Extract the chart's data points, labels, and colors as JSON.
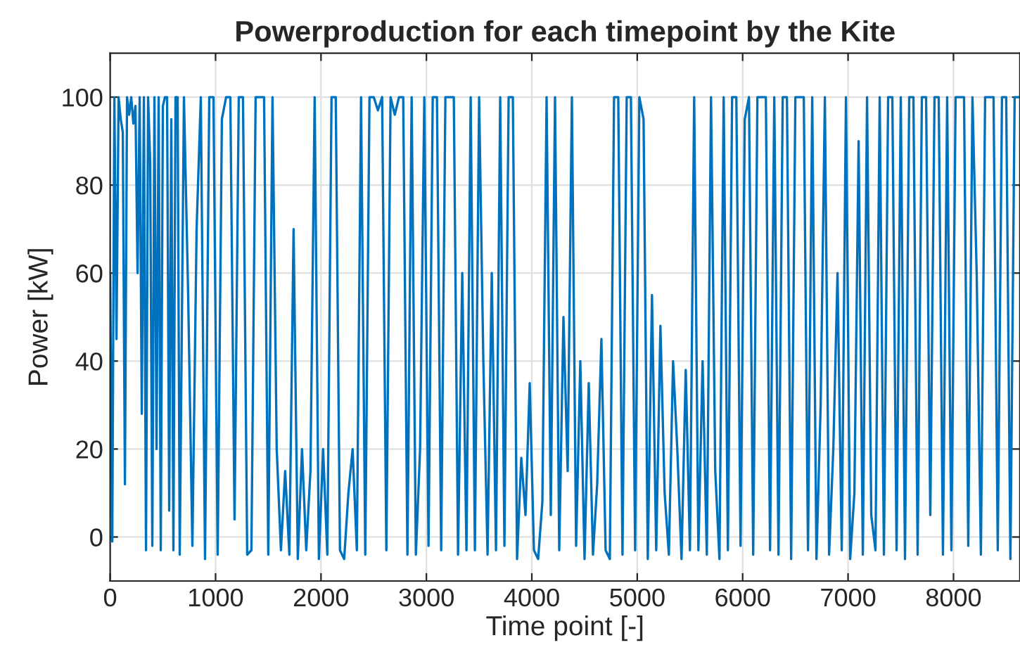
{
  "chart_data": {
    "type": "line",
    "title": "Powerproduction for each timepoint by the Kite",
    "xlabel": "Time point [-]",
    "ylabel": "Power [kW]",
    "xlim": [
      0,
      8630
    ],
    "ylim": [
      -10,
      110
    ],
    "xticks": [
      0,
      1000,
      2000,
      3000,
      4000,
      5000,
      6000,
      7000,
      8000
    ],
    "yticks": [
      0,
      20,
      40,
      60,
      80,
      100
    ],
    "grid": true,
    "series": [
      {
        "color": "#0072bd",
        "x": [
          0,
          20,
          40,
          60,
          80,
          100,
          120,
          140,
          160,
          180,
          200,
          220,
          240,
          260,
          280,
          300,
          320,
          340,
          360,
          380,
          400,
          420,
          440,
          460,
          480,
          500,
          520,
          540,
          560,
          580,
          600,
          620,
          640,
          660,
          700,
          740,
          780,
          820,
          860,
          900,
          940,
          980,
          1020,
          1060,
          1100,
          1140,
          1180,
          1220,
          1260,
          1300,
          1340,
          1380,
          1420,
          1460,
          1500,
          1540,
          1580,
          1620,
          1660,
          1700,
          1740,
          1780,
          1820,
          1860,
          1900,
          1940,
          1980,
          2020,
          2060,
          2100,
          2140,
          2180,
          2220,
          2260,
          2300,
          2340,
          2380,
          2420,
          2460,
          2500,
          2540,
          2580,
          2620,
          2660,
          2700,
          2740,
          2780,
          2820,
          2860,
          2900,
          2940,
          2980,
          3020,
          3060,
          3100,
          3140,
          3180,
          3220,
          3260,
          3300,
          3340,
          3380,
          3420,
          3460,
          3500,
          3540,
          3580,
          3620,
          3660,
          3700,
          3740,
          3780,
          3820,
          3860,
          3900,
          3940,
          3980,
          4020,
          4060,
          4100,
          4140,
          4180,
          4220,
          4260,
          4300,
          4340,
          4380,
          4420,
          4460,
          4500,
          4540,
          4580,
          4620,
          4660,
          4700,
          4740,
          4780,
          4820,
          4860,
          4900,
          4940,
          4980,
          5020,
          5060,
          5100,
          5140,
          5180,
          5220,
          5260,
          5300,
          5340,
          5380,
          5420,
          5460,
          5500,
          5540,
          5580,
          5620,
          5660,
          5700,
          5740,
          5780,
          5820,
          5860,
          5900,
          5940,
          5980,
          6020,
          6060,
          6100,
          6140,
          6180,
          6220,
          6260,
          6300,
          6340,
          6380,
          6420,
          6460,
          6500,
          6540,
          6580,
          6620,
          6660,
          6700,
          6740,
          6780,
          6820,
          6860,
          6900,
          6940,
          6980,
          7020,
          7060,
          7100,
          7140,
          7180,
          7220,
          7260,
          7300,
          7340,
          7380,
          7420,
          7460,
          7500,
          7540,
          7580,
          7620,
          7660,
          7700,
          7740,
          7780,
          7820,
          7860,
          7900,
          7940,
          7980,
          8020,
          8060,
          8100,
          8140,
          8180,
          8220,
          8260,
          8300,
          8340,
          8380,
          8420,
          8460,
          8500,
          8540,
          8580,
          8620
        ],
        "values": [
          60,
          -1,
          100,
          45,
          100,
          95,
          92,
          12,
          100,
          96,
          100,
          94,
          98,
          60,
          100,
          28,
          100,
          -3,
          100,
          85,
          -2,
          100,
          20,
          100,
          -3,
          98,
          100,
          100,
          6,
          95,
          -3,
          100,
          100,
          -4,
          100,
          55,
          -2,
          70,
          100,
          -5,
          100,
          100,
          -4,
          95,
          100,
          100,
          4,
          100,
          100,
          -4,
          -3,
          100,
          100,
          100,
          -4,
          100,
          20,
          -3,
          15,
          -4,
          70,
          -5,
          20,
          -3,
          15,
          100,
          -5,
          20,
          -4,
          100,
          100,
          -3,
          -5,
          10,
          20,
          -3,
          100,
          -4,
          100,
          100,
          97,
          100,
          -3,
          100,
          96,
          100,
          100,
          -4,
          100,
          -4,
          20,
          100,
          -2,
          100,
          100,
          -3,
          100,
          100,
          100,
          -4,
          60,
          -3,
          100,
          -3,
          100,
          40,
          -4,
          60,
          -3,
          100,
          -2,
          100,
          100,
          -5,
          18,
          5,
          35,
          -3,
          -5,
          8,
          100,
          5,
          100,
          -3,
          50,
          15,
          100,
          -2,
          40,
          -5,
          35,
          -4,
          12,
          45,
          -3,
          -5,
          100,
          100,
          -4,
          100,
          100,
          -3,
          100,
          95,
          -5,
          55,
          -3,
          48,
          10,
          -4,
          40,
          20,
          -5,
          38,
          -3,
          100,
          -3,
          40,
          -4,
          100,
          15,
          -5,
          100,
          -3,
          100,
          100,
          -2,
          95,
          100,
          -4,
          100,
          100,
          100,
          -3,
          100,
          -4,
          100,
          100,
          -5,
          100,
          100,
          100,
          -3,
          100,
          -5,
          30,
          100,
          -4,
          20,
          60,
          -3,
          100,
          -5,
          10,
          90,
          -4,
          100,
          5,
          -3,
          100,
          -4,
          100,
          100,
          -3,
          100,
          -5,
          100,
          100,
          -4,
          100,
          100,
          5,
          100,
          100,
          -4,
          100,
          -3,
          100,
          100,
          100,
          -2,
          100,
          60,
          -4,
          100,
          100,
          100,
          -3,
          100,
          100,
          -5,
          100,
          100
        ]
      }
    ]
  }
}
